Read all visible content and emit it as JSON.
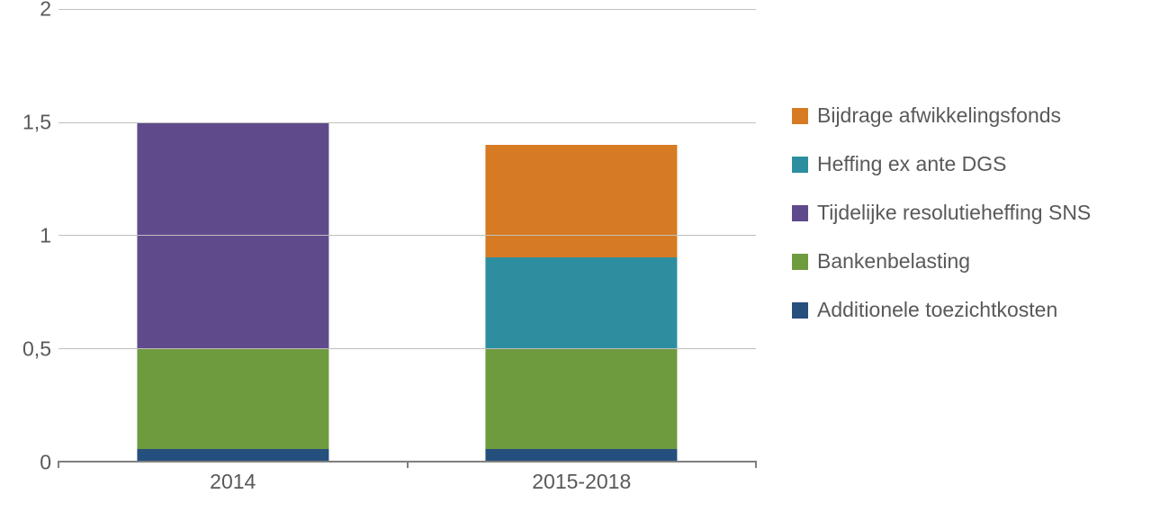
{
  "chart": {
    "type": "stacked-bar",
    "background_color": "#ffffff",
    "grid_color": "#bfbfbf",
    "axis_color": "#7f7f7f",
    "text_color": "#595959",
    "label_fontsize": 23,
    "ylim": [
      0,
      2
    ],
    "ytick_step": 0.5,
    "y_ticks": [
      "0",
      "0,5",
      "1",
      "1,5",
      "2"
    ],
    "bar_width_ratio": 0.55,
    "categories": [
      "2014",
      "2015-2018"
    ],
    "series": [
      {
        "key": "additionele",
        "label": "Additionele toezichtkosten",
        "color": "#254f7c"
      },
      {
        "key": "bankenbelasting",
        "label": "Bankenbelasting",
        "color": "#6f9b3f"
      },
      {
        "key": "tijdelijke",
        "label": "Tijdelijke resolutieheffing SNS",
        "color": "#5f4b8b"
      },
      {
        "key": "heffing",
        "label": "Heffing ex ante DGS",
        "color": "#2d8ea0"
      },
      {
        "key": "bijdrage",
        "label": "Bijdrage afwikkelingsfonds",
        "color": "#d67b23"
      }
    ],
    "legend_order": [
      "bijdrage",
      "heffing",
      "tijdelijke",
      "bankenbelasting",
      "additionele"
    ],
    "data": {
      "2014": {
        "additionele": 0.05,
        "bankenbelasting": 0.45,
        "tijdelijke": 1.0,
        "heffing": 0,
        "bijdrage": 0
      },
      "2015-2018": {
        "additionele": 0.05,
        "bankenbelasting": 0.45,
        "tijdelijke": 0,
        "heffing": 0.4,
        "bijdrage": 0.5
      }
    }
  }
}
